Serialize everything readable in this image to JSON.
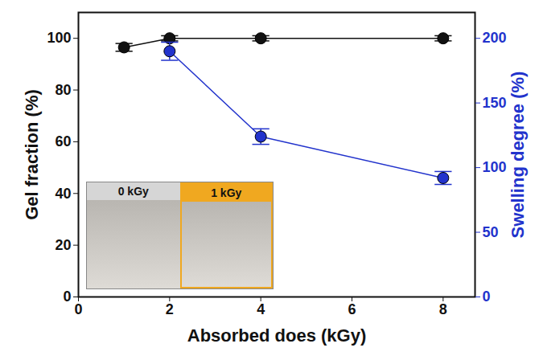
{
  "chart_data": {
    "type": "line",
    "x_label": "Absorbed does (kGy)",
    "y_label": "Gel fraction (%)",
    "y2_label": "Swelling degree (%)",
    "xlim": [
      0,
      8.7
    ],
    "xticks": [
      0,
      2,
      4,
      6,
      8
    ],
    "ylim": [
      0,
      110
    ],
    "yticks": [
      0,
      20,
      40,
      60,
      80,
      100
    ],
    "y2lim": [
      0,
      220
    ],
    "y2ticks": [
      0,
      50,
      100,
      150,
      200
    ],
    "grid": false,
    "marker": "circle",
    "annotations": [
      "0 kGy",
      "1 kGy"
    ],
    "series": [
      {
        "x": [
          1,
          2,
          4,
          8
        ],
        "values": [
          96.5,
          100,
          100,
          100
        ],
        "errors": [
          1.5,
          1,
          1,
          1
        ],
        "color": "#111111"
      },
      {
        "x": [
          2,
          4,
          8
        ],
        "values": [
          190,
          124,
          92
        ],
        "errors": [
          7,
          6,
          5
        ],
        "color": "#2233cc",
        "axis": "y2"
      }
    ]
  }
}
